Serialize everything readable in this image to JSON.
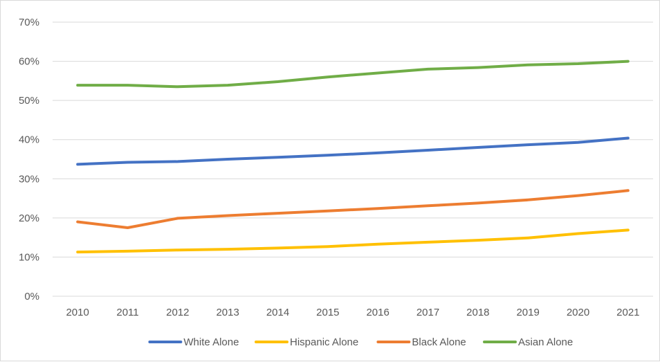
{
  "chart_data": {
    "type": "line",
    "categories": [
      "2010",
      "2011",
      "2012",
      "2013",
      "2014",
      "2015",
      "2016",
      "2017",
      "2018",
      "2019",
      "2020",
      "2021"
    ],
    "ylim": [
      0,
      70
    ],
    "yticks": [
      0,
      10,
      20,
      30,
      40,
      50,
      60,
      70
    ],
    "ytick_labels": [
      "0%",
      "10%",
      "20%",
      "30%",
      "40%",
      "50%",
      "60%",
      "70%"
    ],
    "grid": true,
    "legend_position": "bottom",
    "series": [
      {
        "name": "White Alone",
        "color": "#4472c4",
        "values": [
          33.7,
          34.2,
          34.4,
          35.0,
          35.5,
          36.0,
          36.6,
          37.3,
          38.0,
          38.7,
          39.3,
          40.4
        ]
      },
      {
        "name": "Hispanic Alone",
        "color": "#ffc000",
        "values": [
          11.3,
          11.5,
          11.8,
          12.0,
          12.3,
          12.7,
          13.3,
          13.8,
          14.3,
          14.9,
          16.0,
          16.9
        ]
      },
      {
        "name": "Black Alone",
        "color": "#ed7d31",
        "values": [
          19.0,
          17.5,
          19.9,
          20.6,
          21.2,
          21.8,
          22.4,
          23.1,
          23.8,
          24.6,
          25.7,
          27.0
        ]
      },
      {
        "name": "Asian Alone",
        "color": "#70ad47",
        "values": [
          53.9,
          53.9,
          53.5,
          53.9,
          54.8,
          56.0,
          57.0,
          58.0,
          58.4,
          59.1,
          59.4,
          60.0
        ]
      }
    ]
  }
}
